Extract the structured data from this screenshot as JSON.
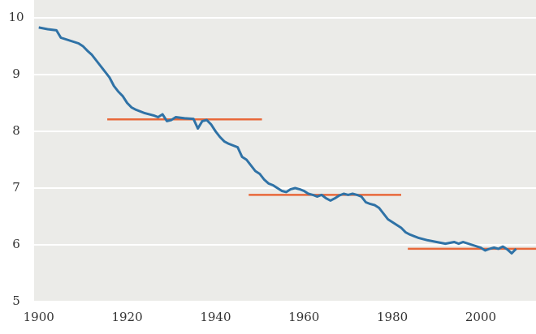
{
  "chart_data": {
    "type": "line",
    "x": [
      1900,
      1902,
      1904,
      1905,
      1907,
      1909,
      1910,
      1911,
      1912,
      1913,
      1914,
      1915,
      1916,
      1917,
      1918,
      1919,
      1920,
      1921,
      1922,
      1924,
      1926,
      1927,
      1928,
      1929,
      1930,
      1931,
      1933,
      1935,
      1936,
      1937,
      1938,
      1939,
      1940,
      1941,
      1942,
      1943,
      1944,
      1945,
      1946,
      1947,
      1948,
      1949,
      1950,
      1951,
      1952,
      1953,
      1954,
      1955,
      1956,
      1957,
      1958,
      1959,
      1960,
      1961,
      1962,
      1963,
      1964,
      1965,
      1966,
      1967,
      1968,
      1969,
      1970,
      1971,
      1972,
      1973,
      1974,
      1975,
      1976,
      1977,
      1978,
      1979,
      1980,
      1981,
      1982,
      1983,
      1984,
      1986,
      1988,
      1990,
      1992,
      1994,
      1995,
      1996,
      1998,
      2000,
      2001,
      2002,
      2003,
      2004,
      2005,
      2006,
      2007,
      2008
    ],
    "values": [
      9.83,
      9.8,
      9.78,
      9.65,
      9.6,
      9.55,
      9.5,
      9.42,
      9.35,
      9.25,
      9.15,
      9.05,
      8.95,
      8.8,
      8.7,
      8.62,
      8.5,
      8.42,
      8.38,
      8.32,
      8.28,
      8.25,
      8.3,
      8.18,
      8.2,
      8.25,
      8.23,
      8.22,
      8.05,
      8.18,
      8.2,
      8.12,
      8.0,
      7.9,
      7.82,
      7.78,
      7.75,
      7.72,
      7.55,
      7.5,
      7.4,
      7.3,
      7.25,
      7.15,
      7.08,
      7.05,
      7.0,
      6.95,
      6.93,
      6.98,
      7.0,
      6.98,
      6.95,
      6.9,
      6.88,
      6.85,
      6.88,
      6.82,
      6.78,
      6.82,
      6.87,
      6.9,
      6.88,
      6.9,
      6.88,
      6.85,
      6.75,
      6.72,
      6.7,
      6.65,
      6.55,
      6.45,
      6.4,
      6.35,
      6.3,
      6.22,
      6.18,
      6.12,
      6.08,
      6.05,
      6.02,
      6.05,
      6.02,
      6.05,
      6.0,
      5.95,
      5.9,
      5.93,
      5.95,
      5.93,
      5.97,
      5.92,
      5.85,
      5.93
    ],
    "color": "#2f72a6",
    "reference_lines": [
      {
        "x": [
          1915.5,
          1950.5
        ],
        "y": 8.21
      },
      {
        "x": [
          1947.5,
          1982
        ],
        "y": 6.88
      },
      {
        "x": [
          1983.5,
          2012.5
        ],
        "y": 5.93
      }
    ],
    "reference_color": "#e8683a",
    "xlim": [
      1899.5,
      2012.5
    ],
    "xticks": [
      1900,
      1920,
      1940,
      1960,
      1980,
      2000
    ],
    "ylim": [
      5,
      10
    ],
    "yticks": [
      5,
      6,
      7,
      8,
      9,
      10
    ],
    "grid": true
  }
}
